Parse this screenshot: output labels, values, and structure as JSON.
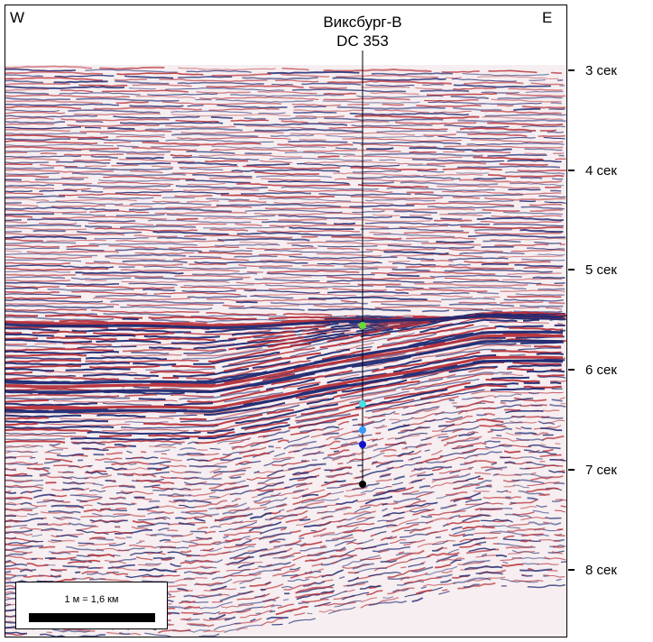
{
  "directions": {
    "west": "W",
    "east": "E"
  },
  "well": {
    "name": "Виксбург-В",
    "code": "DC 353"
  },
  "time_axis": {
    "unit": "сек",
    "ticks": [
      "3 сек",
      "4 сек",
      "5 сек",
      "6 сек",
      "7 сек",
      "8 сек"
    ]
  },
  "scale": {
    "label": "1 м = 1,6 км"
  },
  "colors": {
    "positive": "#b8323a",
    "negative": "#1f2a73",
    "markers": [
      "#66dd33",
      "#44e0e6",
      "#3399ff",
      "#1010cc",
      "#000000"
    ]
  }
}
